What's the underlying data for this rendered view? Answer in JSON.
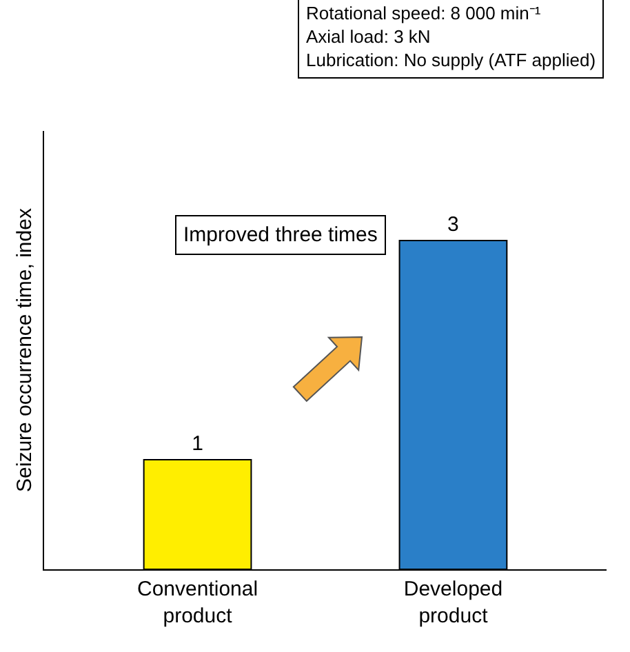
{
  "chart_data": {
    "type": "bar",
    "categories": [
      "Conventional product",
      "Developed product"
    ],
    "values": [
      1,
      3
    ],
    "colors": [
      "#ffee00",
      "#2a7fc8"
    ],
    "data_labels": true,
    "ylabel": "Seizure occurrence time, index",
    "annotations": [
      "Rotational speed: 8 000 min⁻¹\nAxial load: 3 kN\nLubrication: No supply (ATF applied)",
      "Improved three times"
    ],
    "tick_labels": "x"
  }
}
